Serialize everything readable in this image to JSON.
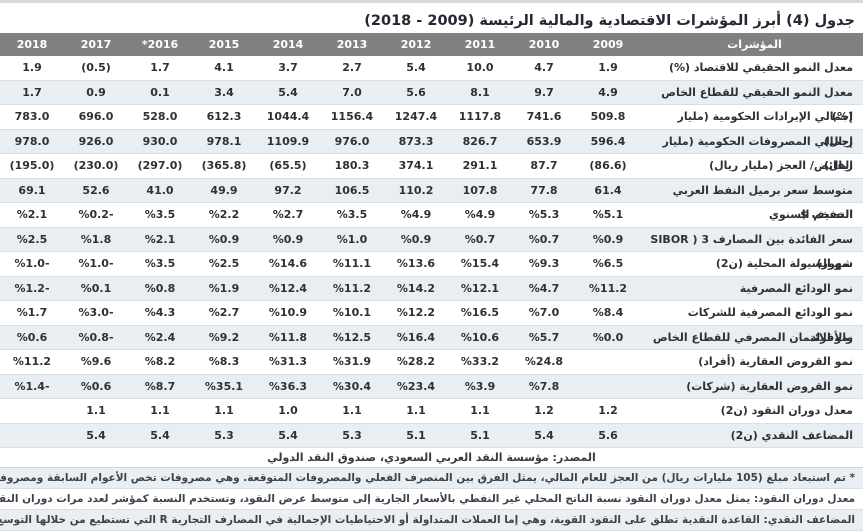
{
  "title": "جدول (4) أبرز المؤشرات الاقتصادية والمالية الرئيسة (2009 - 2018)",
  "colors": {
    "header_bg": "#818181",
    "alt_row_bg": "#e9eef2",
    "title_color": "#232832",
    "border": "#d9dee2"
  },
  "table": {
    "indicators_header": "المؤشرات",
    "years": [
      "2018",
      "2017",
      "*2016",
      "2015",
      "2014",
      "2013",
      "2012",
      "2011",
      "2010",
      "2009"
    ],
    "rows": [
      {
        "label": "معدل النمو الحقيقي للاقتصاد  (%)",
        "values": [
          "1.9",
          "(0.5)",
          "1.7",
          "4.1",
          "3.7",
          "2.7",
          "5.4",
          "10.0",
          "4.7",
          "1.9"
        ]
      },
      {
        "label": "معدل النمو الحقيقي للقطاع الخاص  (%)",
        "values": [
          "1.7",
          "0.9",
          "0.1",
          "3.4",
          "5.4",
          "7.0",
          "5.6",
          "8.1",
          "9.7",
          "4.9"
        ]
      },
      {
        "label": "إجمالي الإيرادات الحكومية (مليار ريال)",
        "values": [
          "783.0",
          "696.0",
          "528.0",
          "612.3",
          "1044.4",
          "1156.4",
          "1247.4",
          "1117.8",
          "741.6",
          "509.8"
        ]
      },
      {
        "label": "إجمالي المصروفات الحكومية (مليار ريال)",
        "values": [
          "978.0",
          "926.0",
          "930.0",
          "978.1",
          "1109.9",
          "976.0",
          "873.3",
          "826.7",
          "653.9",
          "596.4"
        ]
      },
      {
        "label": "الفائض/ العجز (مليار ريال)",
        "values": [
          "(195.0)",
          "(230.0)",
          "(297.0)",
          "(365.8)",
          "(65.5)",
          "180.3",
          "374.1",
          "291.1",
          "87.7",
          "(86.6)"
        ]
      },
      {
        "label": "متوسط سعر برميل النفط العربي الخفيف $",
        "values": [
          "69.1",
          "52.6",
          "41.0",
          "49.9",
          "97.2",
          "106.5",
          "110.2",
          "107.8",
          "77.8",
          "61.4"
        ]
      },
      {
        "label": "التضخم السنوي",
        "values": [
          "%2.1",
          "%0.2-",
          "%3.5",
          "%2.2",
          "%2.7",
          "%3.5",
          "%4.9",
          "%4.9",
          "%5.3",
          "%5.1"
        ]
      },
      {
        "label": "سعر الفائدة بين المصارف 3 ( SIBOR شهور)",
        "values": [
          "%2.5",
          "%1.8",
          "%2.1",
          "%0.9",
          "%0.9",
          "%1.0",
          "%0.9",
          "%0.7",
          "%0.7",
          "%0.9"
        ]
      },
      {
        "label": "نمو السيولة المحلية (ن2)",
        "values": [
          "%1.0-",
          "%1.0-",
          "%3.5",
          "%2.5",
          "%14.6",
          "%11.1",
          "%13.6",
          "%15.4",
          "%9.3",
          "%6.5"
        ]
      },
      {
        "label": "نمو الودائع المصرفية",
        "values": [
          "%1.2-",
          "%0.1",
          "%0.8",
          "%1.9",
          "%12.4",
          "%11.2",
          "%14.2",
          "%12.1",
          "%4.7",
          "%11.2"
        ]
      },
      {
        "label": "نمو الودائع المصرفية للشركات والأفراد",
        "values": [
          "%1.7",
          "%3.0-",
          "%4.3",
          "%2.7",
          "%10.9",
          "%10.1",
          "%12.2",
          "%16.5",
          "%7.0",
          "%8.4"
        ]
      },
      {
        "label": "نمو الائتمان المصرفي للقطاع الخاص",
        "values": [
          "%0.6",
          "%0.8-",
          "%2.4",
          "%9.2",
          "%11.8",
          "%12.5",
          "%16.4",
          "%10.6",
          "%5.7",
          "%0.0"
        ]
      },
      {
        "label": "نمو القروض العقارية (أفراد)",
        "values": [
          "%11.2",
          "%9.6",
          "%8.2",
          "%8.3",
          "%31.3",
          "%31.9",
          "%28.2",
          "%33.2",
          "%24.8",
          ""
        ]
      },
      {
        "label": "نمو القروض العقارية (شركات)",
        "values": [
          "%1.4-",
          "%0.6",
          "%8.7",
          "%35.1",
          "%36.3",
          "%30.4",
          "%23.4",
          "%3.9",
          "%7.8",
          ""
        ]
      },
      {
        "label": "معدل دوران النقود (ن2)",
        "values": [
          "",
          "1.1",
          "1.1",
          "1.1",
          "1.0",
          "1.1",
          "1.1",
          "1.1",
          "1.2",
          "1.2"
        ]
      },
      {
        "label": "المضاعف النقدي (ن2)",
        "values": [
          "",
          "5.4",
          "5.4",
          "5.3",
          "5.4",
          "5.3",
          "5.1",
          "5.1",
          "5.4",
          "5.6"
        ]
      }
    ]
  },
  "source": "المصدر: مؤسسة النقد العربي السعودي، صندوق النقد الدولي",
  "footnotes": [
    "* تم استبعاد مبلغ (105 مليارات ريال) من العجز للعام المالي، يمثل الفرق بين المنصرف الفعلي والمصروفات المتوقعة. وهي مصروفات تخص الأعوام السابقة ومصروفات ممولة من الفوائض.",
    "معدل دوران النقود: يمثل معدل دوران النقود نسبة الناتج المحلي غير النفطي بالأسعار الجارية إلى متوسط عرض النقود، وتستخدم النسبة كمؤشر لعدد مرات دوران النقود لتمويل المعاملات الاقتصادية.",
    "المضاعف النقدي: القاعدة النقدية تطلق على النقود القوية، وهي إما العملات المتداولة أو الاحتياطيات الإجمالية في المصارف التجارية R التي تستطيع من خلالها التوسع في منح الائتمان وإيجاد وسائل دفع إضافية."
  ]
}
